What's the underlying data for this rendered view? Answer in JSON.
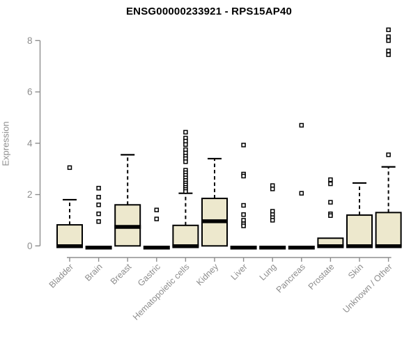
{
  "page": {
    "background": "#ffffff"
  },
  "chart_data": {
    "type": "boxplot",
    "title": "ENSG00000233921 - RPS15AP40",
    "xlabel": "",
    "ylabel": "Expression",
    "ylim": [
      0,
      8.6
    ],
    "yticks": [
      0,
      2,
      4,
      6,
      8
    ],
    "grid": false,
    "legend": "none",
    "categories": [
      "Bladder",
      "Brain",
      "Breast",
      "Gastric",
      "Hematopoietic cells",
      "Kidney",
      "Liver",
      "Lung",
      "Pancreas",
      "Prostate",
      "Skin",
      "Unknown / Other"
    ],
    "boxes": [
      {
        "category": "Bladder",
        "q1": 0,
        "median": 0.03,
        "q3": 0.82,
        "whisker_low": 0,
        "whisker_high": 1.8,
        "outliers": [
          3.05
        ]
      },
      {
        "category": "Brain",
        "q1": 0,
        "median": 0,
        "q3": 0,
        "whisker_low": 0,
        "whisker_high": 0,
        "outliers": [
          0.95,
          1.25,
          1.6,
          1.9,
          2.25
        ]
      },
      {
        "category": "Breast",
        "q1": 0,
        "median": 0.78,
        "q3": 1.6,
        "whisker_low": 0,
        "whisker_high": 3.55,
        "outliers": []
      },
      {
        "category": "Gastric",
        "q1": 0,
        "median": 0,
        "q3": 0,
        "whisker_low": 0,
        "whisker_high": 0,
        "outliers": [
          1.05,
          1.4
        ]
      },
      {
        "category": "Hematopoietic cells",
        "q1": 0,
        "median": 0.03,
        "q3": 0.8,
        "whisker_low": 0,
        "whisker_high": 2.05,
        "outliers": [
          4.43,
          4.2,
          4.08,
          3.95,
          3.75,
          3.62,
          3.5,
          3.4,
          3.28,
          2.95,
          2.85,
          2.75,
          2.65,
          2.55,
          2.45,
          2.37,
          2.28,
          2.2,
          2.12
        ]
      },
      {
        "category": "Kidney",
        "q1": 0,
        "median": 1.0,
        "q3": 1.85,
        "whisker_low": 0,
        "whisker_high": 3.4,
        "outliers": []
      },
      {
        "category": "Liver",
        "q1": 0,
        "median": 0,
        "q3": 0,
        "whisker_low": 0,
        "whisker_high": 0,
        "outliers": [
          3.93,
          2.8,
          2.72,
          1.58,
          1.22,
          1.0,
          0.86,
          0.78
        ]
      },
      {
        "category": "Lung",
        "q1": 0,
        "median": 0,
        "q3": 0,
        "whisker_low": 0,
        "whisker_high": 0,
        "outliers": [
          2.35,
          2.22,
          1.35,
          1.22,
          1.1,
          1.0
        ]
      },
      {
        "category": "Pancreas",
        "q1": 0,
        "median": 0,
        "q3": 0,
        "whisker_low": 0,
        "whisker_high": 0,
        "outliers": [
          4.7,
          2.05
        ]
      },
      {
        "category": "Prostate",
        "q1": 0,
        "median": 0.03,
        "q3": 0.3,
        "whisker_low": 0,
        "whisker_high": 0.3,
        "outliers": [
          2.58,
          2.42,
          1.7,
          1.25,
          1.18
        ]
      },
      {
        "category": "Skin",
        "q1": 0,
        "median": 0.03,
        "q3": 1.2,
        "whisker_low": 0,
        "whisker_high": 2.45,
        "outliers": []
      },
      {
        "category": "Unknown / Other",
        "q1": 0,
        "median": 0.03,
        "q3": 1.3,
        "whisker_low": 0,
        "whisker_high": 3.08,
        "outliers": [
          8.42,
          8.15,
          8.0,
          7.6,
          7.45,
          3.55
        ]
      }
    ],
    "colors": {
      "box_fill": "#ede8cd",
      "box_border": "#000000",
      "median": "#000000",
      "whisker": "#000000",
      "outlier_fill": "#ffffff",
      "outlier_border": "#000000",
      "axis": "#8d8d8d",
      "tick_label": "#8d8d8d",
      "title": "#000000"
    }
  }
}
